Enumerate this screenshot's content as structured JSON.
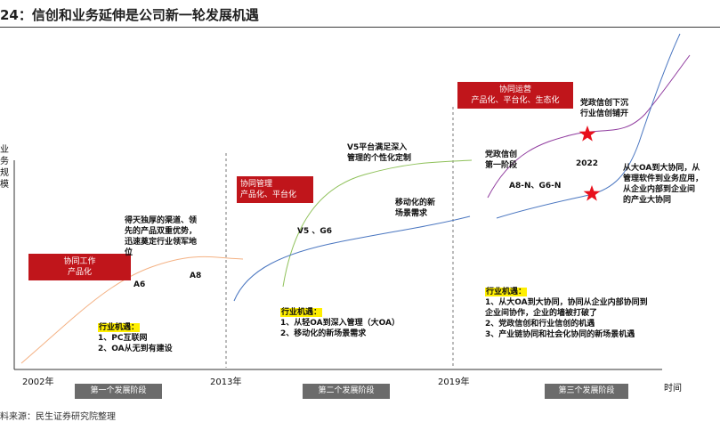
{
  "title": "24：信创和业务延伸是公司新一轮发展机遇",
  "y_axis_label": [
    "业",
    "务",
    "规",
    "模"
  ],
  "x_axis_label": "时间",
  "years": [
    "2002年",
    "2013年",
    "2019年"
  ],
  "stages": [
    "第一个发展阶段",
    "第二个发展阶段",
    "第三个发展阶段"
  ],
  "tags": {
    "stage1": [
      "协同工作",
      "产品化"
    ],
    "stage2": [
      "协同管理",
      "产品化、平台化"
    ],
    "stage3": [
      "协同运营",
      "产品化、平台化、生态化"
    ]
  },
  "labels": {
    "stage1_desc": [
      "得天独厚的渠道、领",
      "先的产品双重优势，",
      "迅速奠定行业领军地",
      "位"
    ],
    "a6": "A6",
    "a8": "A8",
    "v5g6": "V5 、G6",
    "v5_platform": [
      "V5平台满足深入",
      "管理的个性化定制"
    ],
    "mobile": [
      "移动化的新",
      "场景需求"
    ],
    "dangzheng_first": [
      "党政信创",
      "第一阶段"
    ],
    "a8n_g6n": "A8-N、G6-N",
    "year_2022": "2022",
    "dangzheng_down": [
      "党政信创下沉",
      "行业信创铺开"
    ],
    "big_oa": [
      "从大OA到大协同，从",
      "管理软件到业务应用，",
      "从企业内部到企业间",
      "的产业大协同"
    ]
  },
  "opportunities": {
    "heading": "行业机遇：",
    "stage1": [
      "1、PC互联网",
      "2、OA从无到有建设"
    ],
    "stage2": [
      "1、从轻OA到深入管理（大OA）",
      "2、移动化的新场景需求"
    ],
    "stage3": [
      "1、从大OA到大协同，协同从企业内部协同到",
      "企业间协作，企业的墙被打破了",
      "2、党政信创和行业信创的机遇",
      "3、产业链协同和社会化协同的新场景机遇"
    ]
  },
  "source": "料来源：民生证券研究院整理",
  "colors": {
    "tag_red": "#c0151b",
    "orange_curve": "#f4b183",
    "green_curve": "#8fc15a",
    "blue_curve": "#4a76c0",
    "purple_curve": "#8f3a9e",
    "stage_gray": "#6b6b6b",
    "highlight": "#ffef00",
    "star": "#e8101c"
  }
}
